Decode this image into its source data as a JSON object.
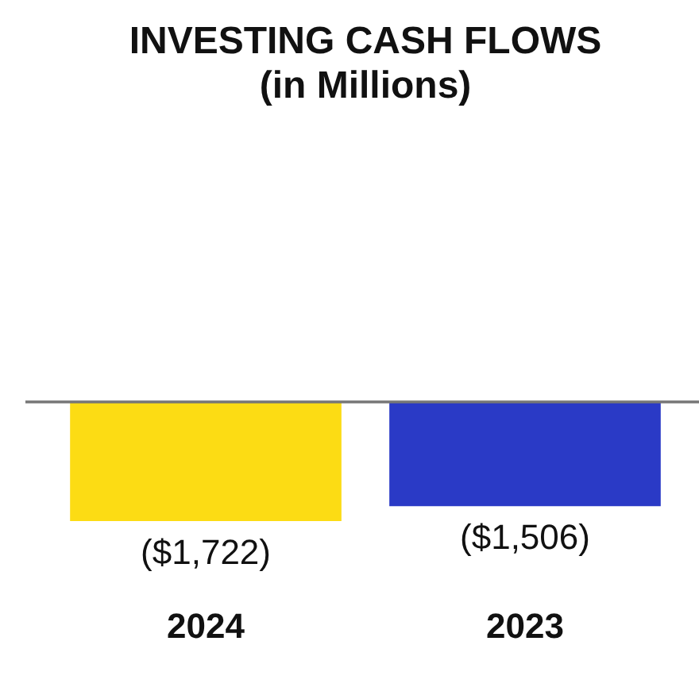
{
  "chart_data": {
    "type": "bar",
    "title": "INVESTING CASH FLOWS",
    "subtitle": "(in Millions)",
    "categories": [
      "2024",
      "2023"
    ],
    "values": [
      -1722,
      -1506
    ],
    "colors": [
      "#fcdc14",
      "#2a3ac6"
    ],
    "value_labels": [
      "($1,722)",
      "($1,506)"
    ]
  }
}
